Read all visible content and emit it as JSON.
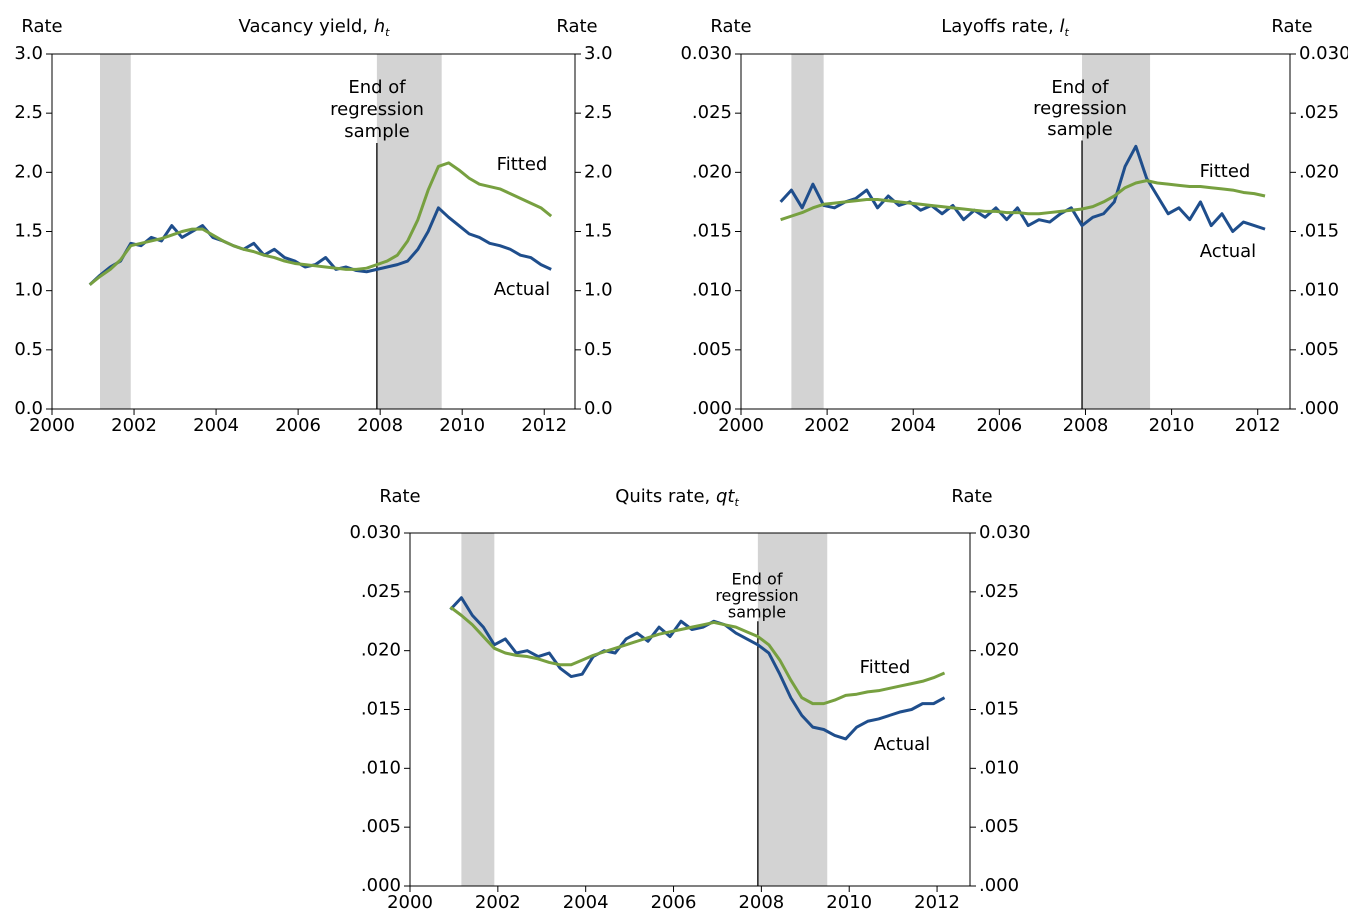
{
  "chart_data": [
    {
      "type": "line",
      "title": "Vacancy yield, ",
      "title_symbol": "h",
      "title_subscript": "t",
      "y_label": "Rate",
      "y2_label": "Rate",
      "x": [
        2000.92,
        2001.17,
        2001.42,
        2001.67,
        2001.92,
        2002.17,
        2002.42,
        2002.67,
        2002.92,
        2003.17,
        2003.42,
        2003.67,
        2003.92,
        2004.17,
        2004.42,
        2004.67,
        2004.92,
        2005.17,
        2005.42,
        2005.67,
        2005.92,
        2006.17,
        2006.42,
        2006.67,
        2006.92,
        2007.17,
        2007.42,
        2007.67,
        2007.92,
        2008.17,
        2008.42,
        2008.67,
        2008.92,
        2009.17,
        2009.42,
        2009.67,
        2009.92,
        2010.17,
        2010.42,
        2010.67,
        2010.92,
        2011.17,
        2011.42,
        2011.67,
        2011.92,
        2012.17
      ],
      "xlim": [
        2000,
        2012.75
      ],
      "xticks": [
        2000,
        2002,
        2004,
        2006,
        2008,
        2010,
        2012
      ],
      "ylim": [
        0,
        3
      ],
      "yticks": [
        {
          "value": 0,
          "label": "0.0"
        },
        {
          "value": 0.5,
          "label": "0.5"
        },
        {
          "value": 1,
          "label": "1.0"
        },
        {
          "value": 1.5,
          "label": "1.5"
        },
        {
          "value": 2,
          "label": "2.0"
        },
        {
          "value": 2.5,
          "label": "2.5"
        },
        {
          "value": 3,
          "label": "3.0"
        }
      ],
      "shaded_regions": [
        [
          2001.17,
          2001.92
        ],
        [
          2007.92,
          2009.5
        ]
      ],
      "shade_color": "#d3d3d3",
      "vline": 2007.92,
      "annotation": [
        "End of",
        "regression",
        "sample"
      ],
      "series": [
        {
          "name": "Actual",
          "color": "#1f4e8c",
          "values": [
            1.05,
            1.13,
            1.2,
            1.25,
            1.4,
            1.38,
            1.45,
            1.42,
            1.55,
            1.45,
            1.5,
            1.55,
            1.45,
            1.42,
            1.38,
            1.35,
            1.4,
            1.3,
            1.35,
            1.28,
            1.25,
            1.2,
            1.22,
            1.28,
            1.18,
            1.2,
            1.17,
            1.16,
            1.18,
            1.2,
            1.22,
            1.25,
            1.35,
            1.5,
            1.7,
            1.62,
            1.55,
            1.48,
            1.45,
            1.4,
            1.38,
            1.35,
            1.3,
            1.28,
            1.22,
            1.18
          ]
        },
        {
          "name": "Fitted",
          "color": "#77a040",
          "values": [
            1.05,
            1.12,
            1.18,
            1.26,
            1.38,
            1.4,
            1.42,
            1.44,
            1.47,
            1.5,
            1.52,
            1.52,
            1.47,
            1.42,
            1.38,
            1.35,
            1.33,
            1.3,
            1.28,
            1.25,
            1.23,
            1.22,
            1.21,
            1.2,
            1.19,
            1.18,
            1.18,
            1.19,
            1.22,
            1.25,
            1.3,
            1.42,
            1.6,
            1.85,
            2.05,
            2.08,
            2.02,
            1.95,
            1.9,
            1.88,
            1.86,
            1.82,
            1.78,
            1.74,
            1.7,
            1.63
          ]
        }
      ]
    },
    {
      "type": "line",
      "title": "Layoffs rate, ",
      "title_symbol": "l",
      "title_subscript": "t",
      "y_label": "Rate",
      "y2_label": "Rate",
      "x": [
        2000.92,
        2001.17,
        2001.42,
        2001.67,
        2001.92,
        2002.17,
        2002.42,
        2002.67,
        2002.92,
        2003.17,
        2003.42,
        2003.67,
        2003.92,
        2004.17,
        2004.42,
        2004.67,
        2004.92,
        2005.17,
        2005.42,
        2005.67,
        2005.92,
        2006.17,
        2006.42,
        2006.67,
        2006.92,
        2007.17,
        2007.42,
        2007.67,
        2007.92,
        2008.17,
        2008.42,
        2008.67,
        2008.92,
        2009.17,
        2009.42,
        2009.67,
        2009.92,
        2010.17,
        2010.42,
        2010.67,
        2010.92,
        2011.17,
        2011.42,
        2011.67,
        2011.92,
        2012.17
      ],
      "xlim": [
        2000,
        2012.75
      ],
      "xticks": [
        2000,
        2002,
        2004,
        2006,
        2008,
        2010,
        2012
      ],
      "ylim": [
        0,
        0.03
      ],
      "yticks": [
        {
          "value": 0,
          "label": ".000"
        },
        {
          "value": 0.005,
          "label": ".005"
        },
        {
          "value": 0.01,
          "label": ".010"
        },
        {
          "value": 0.015,
          "label": ".015"
        },
        {
          "value": 0.02,
          "label": ".020"
        },
        {
          "value": 0.025,
          "label": ".025"
        },
        {
          "value": 0.03,
          "label": "0.030"
        }
      ],
      "shaded_regions": [
        [
          2001.17,
          2001.92
        ],
        [
          2007.92,
          2009.5
        ]
      ],
      "shade_color": "#d3d3d3",
      "vline": 2007.92,
      "annotation": [
        "End of",
        "regression",
        "sample"
      ],
      "series": [
        {
          "name": "Actual",
          "color": "#1f4e8c",
          "values": [
            0.0175,
            0.0185,
            0.017,
            0.019,
            0.0172,
            0.017,
            0.0175,
            0.0178,
            0.0185,
            0.017,
            0.018,
            0.0172,
            0.0175,
            0.0168,
            0.0172,
            0.0165,
            0.0172,
            0.016,
            0.0168,
            0.0162,
            0.017,
            0.016,
            0.017,
            0.0155,
            0.016,
            0.0158,
            0.0165,
            0.017,
            0.0155,
            0.0162,
            0.0165,
            0.0175,
            0.0205,
            0.0222,
            0.0195,
            0.018,
            0.0165,
            0.017,
            0.016,
            0.0175,
            0.0155,
            0.0165,
            0.015,
            0.0158,
            0.0155,
            0.0152
          ]
        },
        {
          "name": "Fitted",
          "color": "#77a040",
          "values": [
            0.016,
            0.0163,
            0.0166,
            0.017,
            0.0173,
            0.0174,
            0.0175,
            0.0176,
            0.0177,
            0.0177,
            0.0176,
            0.0175,
            0.0174,
            0.0173,
            0.0172,
            0.0171,
            0.017,
            0.0169,
            0.0168,
            0.0167,
            0.0167,
            0.0166,
            0.0166,
            0.0165,
            0.0165,
            0.0166,
            0.0167,
            0.0168,
            0.0169,
            0.0171,
            0.0175,
            0.018,
            0.0187,
            0.0191,
            0.0193,
            0.0191,
            0.019,
            0.0189,
            0.0188,
            0.0188,
            0.0187,
            0.0186,
            0.0185,
            0.0183,
            0.0182,
            0.018
          ]
        }
      ]
    },
    {
      "type": "line",
      "title": "Quits rate, ",
      "title_symbol": "qt",
      "title_subscript": "t",
      "y_label": "Rate",
      "y2_label": "Rate",
      "x": [
        2000.92,
        2001.17,
        2001.42,
        2001.67,
        2001.92,
        2002.17,
        2002.42,
        2002.67,
        2002.92,
        2003.17,
        2003.42,
        2003.67,
        2003.92,
        2004.17,
        2004.42,
        2004.67,
        2004.92,
        2005.17,
        2005.42,
        2005.67,
        2005.92,
        2006.17,
        2006.42,
        2006.67,
        2006.92,
        2007.17,
        2007.42,
        2007.67,
        2007.92,
        2008.17,
        2008.42,
        2008.67,
        2008.92,
        2009.17,
        2009.42,
        2009.67,
        2009.92,
        2010.17,
        2010.42,
        2010.67,
        2010.92,
        2011.17,
        2011.42,
        2011.67,
        2011.92,
        2012.17
      ],
      "xlim": [
        2000,
        2012.75
      ],
      "xticks": [
        2000,
        2002,
        2004,
        2006,
        2008,
        2010,
        2012
      ],
      "ylim": [
        0,
        0.03
      ],
      "yticks": [
        {
          "value": 0,
          "label": ".000"
        },
        {
          "value": 0.005,
          "label": ".005"
        },
        {
          "value": 0.01,
          "label": ".010"
        },
        {
          "value": 0.015,
          "label": ".015"
        },
        {
          "value": 0.02,
          "label": ".020"
        },
        {
          "value": 0.025,
          "label": ".025"
        },
        {
          "value": 0.03,
          "label": "0.030"
        }
      ],
      "shaded_regions": [
        [
          2001.17,
          2001.92
        ],
        [
          2007.92,
          2009.5
        ]
      ],
      "shade_color": "#d3d3d3",
      "vline": 2007.92,
      "annotation": [
        "End of",
        "regression",
        "sample"
      ],
      "series": [
        {
          "name": "Actual",
          "color": "#1f4e8c",
          "values": [
            0.0235,
            0.0245,
            0.023,
            0.022,
            0.0205,
            0.021,
            0.0198,
            0.02,
            0.0195,
            0.0198,
            0.0185,
            0.0178,
            0.018,
            0.0195,
            0.02,
            0.0198,
            0.021,
            0.0215,
            0.0208,
            0.022,
            0.0212,
            0.0225,
            0.0218,
            0.022,
            0.0225,
            0.0222,
            0.0215,
            0.021,
            0.0205,
            0.0198,
            0.018,
            0.016,
            0.0145,
            0.0135,
            0.0133,
            0.0128,
            0.0125,
            0.0135,
            0.014,
            0.0142,
            0.0145,
            0.0148,
            0.015,
            0.0155,
            0.0155,
            0.016
          ]
        },
        {
          "name": "Fitted",
          "color": "#77a040",
          "values": [
            0.0237,
            0.023,
            0.0222,
            0.0212,
            0.0202,
            0.0198,
            0.0196,
            0.0195,
            0.0193,
            0.019,
            0.0188,
            0.0188,
            0.0192,
            0.0196,
            0.0199,
            0.0202,
            0.0205,
            0.0208,
            0.0211,
            0.0214,
            0.0216,
            0.0218,
            0.022,
            0.0222,
            0.0224,
            0.0222,
            0.022,
            0.0216,
            0.0212,
            0.0205,
            0.0192,
            0.0175,
            0.016,
            0.0155,
            0.0155,
            0.0158,
            0.0162,
            0.0163,
            0.0165,
            0.0166,
            0.0168,
            0.017,
            0.0172,
            0.0174,
            0.0177,
            0.0181
          ]
        }
      ]
    }
  ]
}
